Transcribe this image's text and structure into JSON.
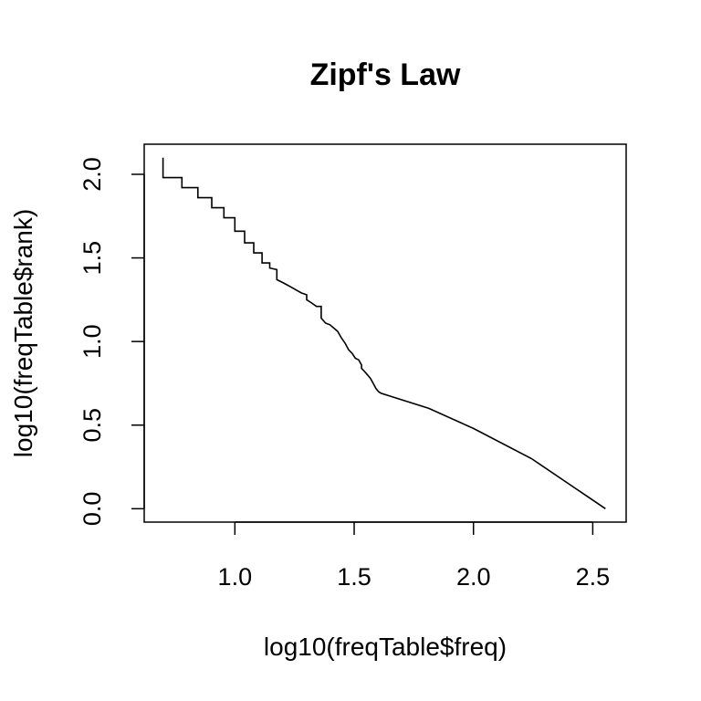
{
  "chart_data": {
    "type": "line",
    "title": "Zipf's Law",
    "xlabel": "log10(freqTable$freq)",
    "ylabel": "log10(freqTable$rank)",
    "xlim": [
      0.62,
      2.64
    ],
    "ylim": [
      -0.08,
      2.18
    ],
    "x_ticks": [
      "1.0",
      "1.5",
      "2.0",
      "2.5"
    ],
    "y_ticks": [
      "0.0",
      "0.5",
      "1.0",
      "1.5",
      "2.0"
    ],
    "x_tick_values": [
      1.0,
      1.5,
      2.0,
      2.5
    ],
    "y_tick_values": [
      0.0,
      0.5,
      1.0,
      1.5,
      2.0
    ],
    "grid": false,
    "legend": "none",
    "series": [
      {
        "x": [
          0.699,
          0.699,
          0.699,
          0.778,
          0.778,
          0.778,
          0.845,
          0.845,
          0.903,
          0.903,
          0.954,
          0.954,
          1.0,
          1.0,
          1.041,
          1.041,
          1.079,
          1.079,
          1.114,
          1.114,
          1.146,
          1.146,
          1.176,
          1.176,
          1.204,
          1.23,
          1.255,
          1.279,
          1.301,
          1.301,
          1.322,
          1.342,
          1.362,
          1.362,
          1.38,
          1.398,
          1.415,
          1.431,
          1.447,
          1.462,
          1.477,
          1.491,
          1.505,
          1.519,
          1.531,
          1.531,
          1.544,
          1.556,
          1.568,
          1.58,
          1.591,
          1.602,
          1.613,
          1.813,
          2.0,
          2.243,
          2.553
        ],
        "y": [
          2.1,
          1.98,
          1.98,
          1.98,
          1.97,
          1.92,
          1.92,
          1.86,
          1.86,
          1.8,
          1.8,
          1.74,
          1.74,
          1.66,
          1.66,
          1.59,
          1.59,
          1.53,
          1.53,
          1.47,
          1.47,
          1.44,
          1.43,
          1.37,
          1.35,
          1.33,
          1.31,
          1.29,
          1.28,
          1.25,
          1.23,
          1.21,
          1.21,
          1.14,
          1.11,
          1.1,
          1.08,
          1.06,
          1.02,
          0.99,
          0.95,
          0.93,
          0.9,
          0.89,
          0.86,
          0.84,
          0.82,
          0.8,
          0.78,
          0.75,
          0.72,
          0.7,
          0.69,
          0.6,
          0.48,
          0.3,
          0.0
        ]
      }
    ]
  }
}
